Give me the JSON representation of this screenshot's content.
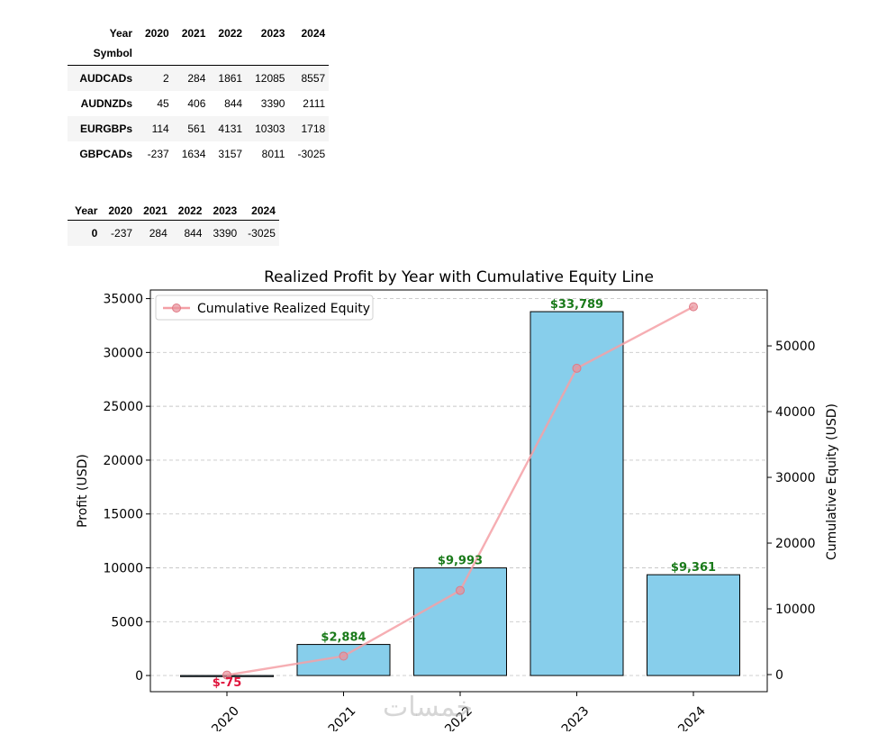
{
  "table1": {
    "columns_label": "Year",
    "index_label": "Symbol",
    "columns": [
      "2020",
      "2021",
      "2022",
      "2023",
      "2024"
    ],
    "rows": [
      {
        "symbol": "AUDCADs",
        "values": [
          "2",
          "284",
          "1861",
          "12085",
          "8557"
        ]
      },
      {
        "symbol": "AUDNZDs",
        "values": [
          "45",
          "406",
          "844",
          "3390",
          "2111"
        ]
      },
      {
        "symbol": "EURGBPs",
        "values": [
          "114",
          "561",
          "4131",
          "10303",
          "1718"
        ]
      },
      {
        "symbol": "GBPCADs",
        "values": [
          "-237",
          "1634",
          "3157",
          "8011",
          "-3025"
        ]
      }
    ]
  },
  "table2": {
    "columns_label": "Year",
    "columns": [
      "2020",
      "2021",
      "2022",
      "2023",
      "2024"
    ],
    "rows": [
      {
        "index": "0",
        "values": [
          "-237",
          "284",
          "844",
          "3390",
          "-3025"
        ]
      }
    ]
  },
  "watermark": "خمسات",
  "chart_data": {
    "type": "bar",
    "title": "Realized Profit by Year with Cumulative Equity Line",
    "categories": [
      "2020",
      "2021",
      "2022",
      "2023",
      "2024"
    ],
    "ylabel": "Profit (USD)",
    "y2label": "Cumulative Equity (USD)",
    "ylim": [
      -1500,
      35800
    ],
    "y2lim": [
      -2600,
      58500
    ],
    "yticks": [
      0,
      5000,
      10000,
      15000,
      20000,
      25000,
      30000,
      35000
    ],
    "y2ticks": [
      0,
      10000,
      20000,
      30000,
      40000,
      50000
    ],
    "grid": "horizontal dashed",
    "legend_position": "top-left",
    "bar_color": "#87ceeb",
    "line_color": "#f4a0a6",
    "label_color_positive": "#1a7a1a",
    "label_color_negative": "#e0143c",
    "series": [
      {
        "type": "bar",
        "values": [
          -75,
          2884,
          9993,
          33789,
          9361
        ],
        "labels": [
          "$-75",
          "$2,884",
          "$9,993",
          "$33,789",
          "$9,361"
        ]
      },
      {
        "type": "line",
        "name": "Cumulative Realized Equity",
        "values": [
          -75,
          2809,
          12802,
          46591,
          55952
        ]
      }
    ]
  }
}
